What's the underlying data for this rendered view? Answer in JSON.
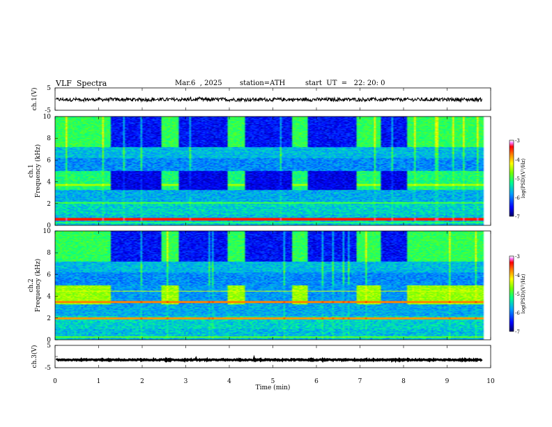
{
  "header": {
    "title": "VLF  Spectra",
    "date": "Mar.6  , 2025",
    "station": "station=ATH",
    "start_ut": "start  UT  =   22: 20: 0"
  },
  "chart_data": [
    {
      "type": "line",
      "panel": "ch1-waveform",
      "ylabel": "ch.1(V)",
      "ylim": [
        -5,
        5
      ],
      "yticks": [
        "5",
        "-5"
      ],
      "xlim": [
        0,
        10
      ],
      "series": [
        {
          "mean": -0.2,
          "noise_amplitude": 0.8
        }
      ]
    },
    {
      "type": "heatmap",
      "panel": "ch1-spectrogram",
      "ylabel": "ch.1\nFrequency (kHz)",
      "ylim": [
        0,
        10
      ],
      "yticks": [
        "0",
        "2",
        "4",
        "6",
        "8",
        "10"
      ],
      "xlim": [
        0,
        10
      ],
      "colorbar": {
        "label": "log(PSD)(V²/Hz)",
        "range": [
          -7,
          -3
        ],
        "ticks": [
          "-3",
          "-4",
          "-5",
          "-6",
          "-7"
        ]
      },
      "quiet_intervals_min": [
        [
          1.27,
          2.43
        ],
        [
          2.82,
          3.95
        ],
        [
          4.36,
          5.4
        ],
        [
          5.8,
          6.9
        ],
        [
          7.48,
          8.05
        ]
      ],
      "data_end_min": 9.8
    },
    {
      "type": "heatmap",
      "panel": "ch2-spectrogram",
      "ylabel": "ch.2\nFrequency (kHz)",
      "ylim": [
        0,
        10
      ],
      "yticks": [
        "0",
        "2",
        "4",
        "6",
        "8",
        "10"
      ],
      "xlim": [
        0,
        10
      ],
      "colorbar": {
        "label": "log(PSD)(V²/Hz)",
        "range": [
          -7,
          -3
        ],
        "ticks": [
          "-3",
          "-4",
          "-5",
          "-6",
          "-7"
        ]
      },
      "quiet_intervals_min": [
        [
          1.27,
          2.43
        ],
        [
          2.82,
          3.95
        ],
        [
          4.36,
          5.4
        ],
        [
          5.8,
          6.9
        ],
        [
          7.48,
          8.05
        ]
      ],
      "data_end_min": 9.8
    },
    {
      "type": "line",
      "panel": "ch3-waveform",
      "ylabel": "ch.3(V)",
      "ylim": [
        -5,
        5
      ],
      "yticks": [
        "5",
        "-5"
      ],
      "xlim": [
        0,
        10
      ],
      "series": [
        {
          "mean": -1.5,
          "noise_amplitude": 0.25
        }
      ]
    }
  ],
  "xaxis": {
    "label": "Time  (min)",
    "ticks": [
      "0",
      "1",
      "2",
      "3",
      "4",
      "5",
      "6",
      "7",
      "8",
      "9",
      "10"
    ]
  },
  "colors": {
    "cmap": [
      "#000060",
      "#0000ff",
      "#00aaff",
      "#00ff80",
      "#80ff00",
      "#ffff00",
      "#ff8000",
      "#ff0000",
      "#ff80ff",
      "#ffffff"
    ]
  }
}
